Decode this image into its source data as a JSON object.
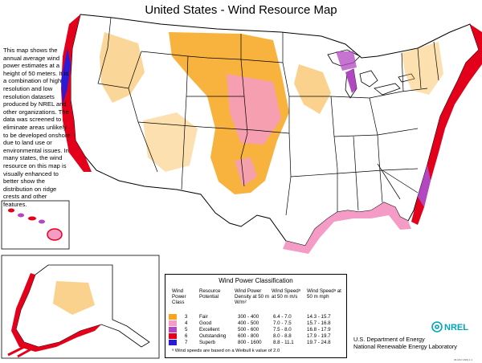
{
  "title": "United States - Wind Resource Map",
  "description": "This map shows the annual average wind power estimates at a height of 50 meters. It is a combination of high resolution and low resolution datasets produced by NREL and other organizations. The data was screened to eliminate areas unlikely to be developed onshore due to land use or environmental issues. In many states, the wind resource on this map is visually enhanced to better show the distribution on ridge crests and other features.",
  "colors": {
    "fair": "#f7a51c",
    "good": "#f49bc6",
    "excellent": "#b247c2",
    "outstanding": "#e3001b",
    "superb": "#2b1bd6",
    "land": "#ffffff",
    "boundary": "#000000"
  },
  "legend": {
    "title": "Wind Power Classification",
    "headers": {
      "class": "Wind Power Class",
      "potential": "Resource Potential",
      "density": "Wind Power Density at 50 m W/m²",
      "speed_ms": "Wind Speedᵃ at 50 m m/s",
      "speed_mph": "Wind Speedᵃ at 50 m mph"
    },
    "rows": [
      {
        "class": "3",
        "potential": "Fair",
        "density": "300 - 400",
        "speed_ms": "6.4 - 7.0",
        "speed_mph": "14.3 - 15.7",
        "color": "#f7a51c"
      },
      {
        "class": "4",
        "potential": "Good",
        "density": "400 - 500",
        "speed_ms": "7.0 - 7.5",
        "speed_mph": "15.7 - 16.8",
        "color": "#f49bc6"
      },
      {
        "class": "5",
        "potential": "Excellent",
        "density": "500 - 600",
        "speed_ms": "7.5 - 8.0",
        "speed_mph": "16.8 - 17.9",
        "color": "#b247c2"
      },
      {
        "class": "6",
        "potential": "Outstanding",
        "density": "600 - 800",
        "speed_ms": "8.0 - 8.8",
        "speed_mph": "17.9 - 19.7",
        "color": "#e3001b"
      },
      {
        "class": "7",
        "potential": "Superb",
        "density": "800 - 1600",
        "speed_ms": "8.8 - 11.1",
        "speed_mph": "19.7 - 24.8",
        "color": "#2b1bd6"
      }
    ],
    "footnote": "ᵃ Wind speeds are based on a Weibull k value of 2.0"
  },
  "agency": {
    "line1": "U.S. Department of Energy",
    "line2": "National Renewable Energy Laboratory"
  },
  "logo_text": "NREL",
  "stamp": "06-MAY-2009 1.1"
}
